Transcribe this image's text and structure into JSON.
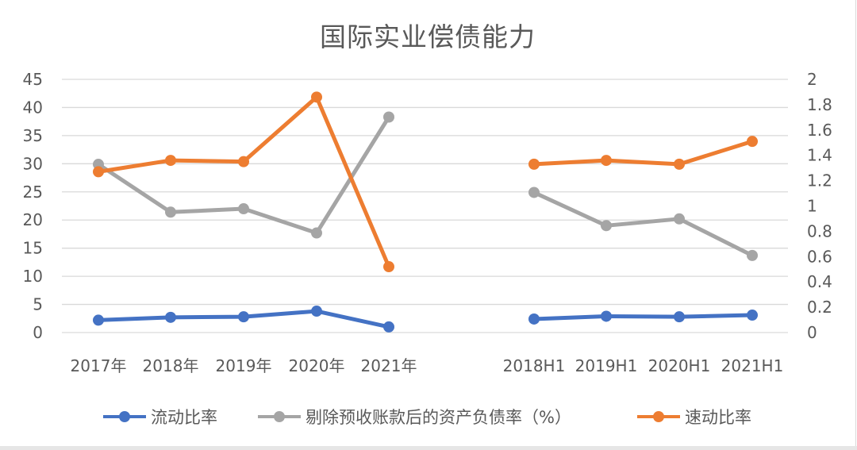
{
  "title": "国际实业偿债能力",
  "colors": {
    "blue": "#4472c4",
    "gray": "#a5a5a5",
    "orange": "#ed7d31",
    "grid": "#d9d9d9",
    "text": "#595959"
  },
  "legend": [
    {
      "label": "流动比率",
      "color": "#4472c4"
    },
    {
      "label": "剔除预收账款后的资产负债率（%）",
      "color": "#a5a5a5"
    },
    {
      "label": "速动比率",
      "color": "#ed7d31"
    }
  ],
  "chart_data": {
    "type": "line",
    "title": "国际实业偿债能力",
    "xlabel": "",
    "ylabel": "",
    "categories": [
      "2017年",
      "2018年",
      "2019年",
      "2020年",
      "2021年",
      "",
      "2018H1",
      "2019H1",
      "2020H1",
      "2021H1"
    ],
    "y_left": {
      "ylim": [
        0,
        45
      ],
      "ticks": [
        0,
        5,
        10,
        15,
        20,
        25,
        30,
        35,
        40,
        45
      ]
    },
    "y_right": {
      "ylim": [
        0,
        2
      ],
      "ticks": [
        "0",
        "0.2",
        "0.4",
        "0.6",
        "0.8",
        "1",
        "1.2",
        "1.4",
        "1.6",
        "1.8",
        "2"
      ]
    },
    "grid": true,
    "legend_position": "bottom",
    "series": [
      {
        "name": "流动比率",
        "axis": "left",
        "color": "#4472c4",
        "values": [
          2.2,
          2.7,
          2.8,
          3.8,
          1.0,
          null,
          2.4,
          2.9,
          2.8,
          3.1
        ]
      },
      {
        "name": "剔除预收账款后的资产负债率（%）",
        "axis": "left",
        "color": "#a5a5a5",
        "values": [
          29.9,
          21.4,
          22.0,
          17.7,
          38.3,
          null,
          24.9,
          19.0,
          20.2,
          13.7
        ]
      },
      {
        "name": "速动比率",
        "axis": "right",
        "color": "#ed7d31",
        "values": [
          1.27,
          1.36,
          1.35,
          1.86,
          0.52,
          null,
          1.33,
          1.36,
          1.33,
          1.51
        ]
      }
    ]
  }
}
